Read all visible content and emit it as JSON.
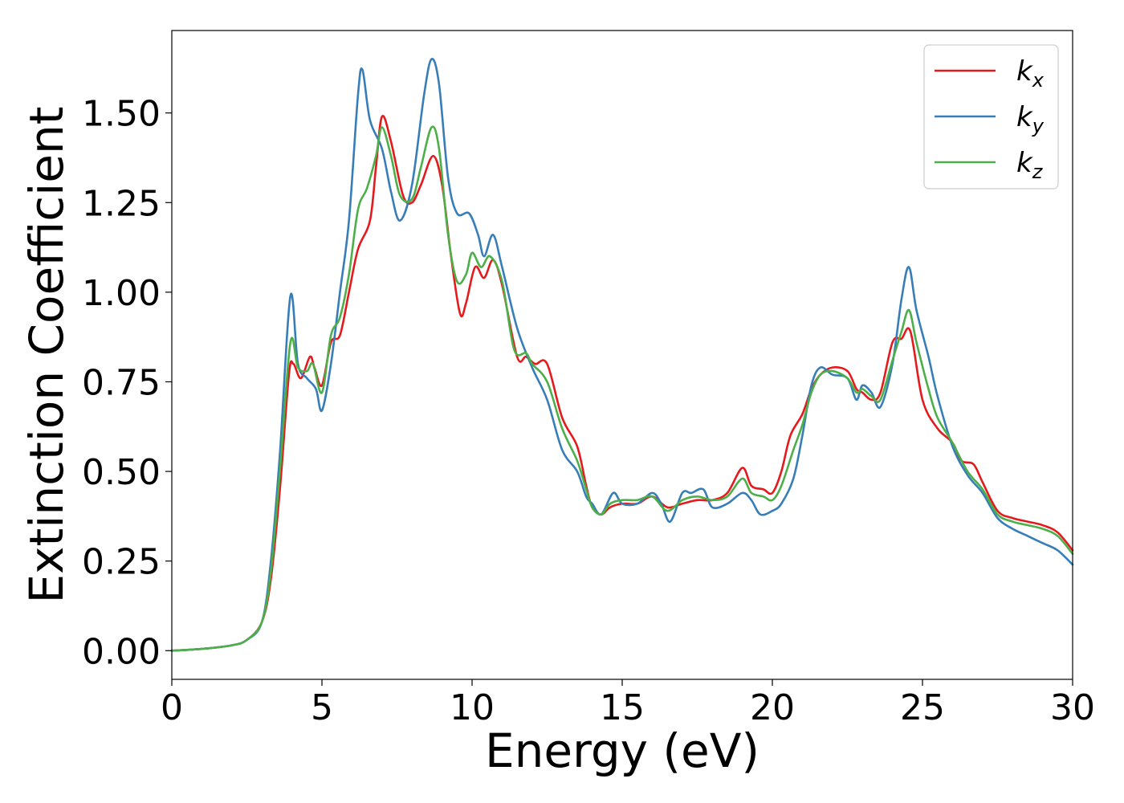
{
  "chart_data": {
    "type": "line",
    "title": "",
    "xlabel": "Energy (eV)",
    "ylabel": "Extinction Coefficient",
    "xlim": [
      0,
      30
    ],
    "ylim": [
      -0.08,
      1.73
    ],
    "xticks": [
      0,
      5,
      10,
      15,
      20,
      25,
      30
    ],
    "xtick_labels": [
      "0",
      "5",
      "10",
      "15",
      "20",
      "25",
      "30"
    ],
    "yticks": [
      0,
      0.25,
      0.5,
      0.75,
      1.0,
      1.25,
      1.5
    ],
    "ytick_labels": [
      "0.00",
      "0.25",
      "0.50",
      "0.75",
      "1.00",
      "1.25",
      "1.50"
    ],
    "grid": false,
    "legend_position": "top-right",
    "series": [
      {
        "name": "k_x",
        "legend_base": "k",
        "legend_sub": "x",
        "color": "#e41a1c",
        "points": [
          [
            0,
            0
          ],
          [
            1,
            0.005
          ],
          [
            2,
            0.015
          ],
          [
            2.5,
            0.03
          ],
          [
            3.0,
            0.08
          ],
          [
            3.3,
            0.2
          ],
          [
            3.6,
            0.45
          ],
          [
            3.9,
            0.77
          ],
          [
            4.05,
            0.8
          ],
          [
            4.3,
            0.76
          ],
          [
            4.6,
            0.82
          ],
          [
            4.75,
            0.79
          ],
          [
            5.0,
            0.74
          ],
          [
            5.3,
            0.86
          ],
          [
            5.6,
            0.88
          ],
          [
            5.9,
            1.0
          ],
          [
            6.2,
            1.12
          ],
          [
            6.6,
            1.2
          ],
          [
            6.8,
            1.35
          ],
          [
            7.0,
            1.49
          ],
          [
            7.3,
            1.42
          ],
          [
            7.7,
            1.27
          ],
          [
            8.0,
            1.25
          ],
          [
            8.3,
            1.3
          ],
          [
            8.7,
            1.38
          ],
          [
            9.0,
            1.3
          ],
          [
            9.3,
            1.1
          ],
          [
            9.6,
            0.94
          ],
          [
            9.8,
            0.97
          ],
          [
            10.1,
            1.07
          ],
          [
            10.4,
            1.04
          ],
          [
            10.7,
            1.09
          ],
          [
            11.0,
            1.02
          ],
          [
            11.5,
            0.82
          ],
          [
            11.8,
            0.82
          ],
          [
            12.1,
            0.8
          ],
          [
            12.5,
            0.8
          ],
          [
            13.0,
            0.65
          ],
          [
            13.5,
            0.57
          ],
          [
            13.8,
            0.46
          ],
          [
            14.0,
            0.4
          ],
          [
            14.3,
            0.38
          ],
          [
            14.6,
            0.4
          ],
          [
            15.0,
            0.41
          ],
          [
            15.5,
            0.41
          ],
          [
            16.0,
            0.43
          ],
          [
            16.5,
            0.4
          ],
          [
            17.0,
            0.41
          ],
          [
            17.5,
            0.42
          ],
          [
            18.0,
            0.42
          ],
          [
            18.5,
            0.44
          ],
          [
            19.0,
            0.51
          ],
          [
            19.3,
            0.46
          ],
          [
            19.7,
            0.45
          ],
          [
            20.0,
            0.44
          ],
          [
            20.3,
            0.5
          ],
          [
            20.6,
            0.6
          ],
          [
            21.0,
            0.66
          ],
          [
            21.3,
            0.73
          ],
          [
            21.6,
            0.77
          ],
          [
            22.0,
            0.79
          ],
          [
            22.5,
            0.78
          ],
          [
            22.8,
            0.73
          ],
          [
            23.0,
            0.72
          ],
          [
            23.3,
            0.7
          ],
          [
            23.6,
            0.72
          ],
          [
            24.0,
            0.86
          ],
          [
            24.3,
            0.87
          ],
          [
            24.6,
            0.89
          ],
          [
            25.0,
            0.7
          ],
          [
            25.5,
            0.62
          ],
          [
            26.0,
            0.58
          ],
          [
            26.3,
            0.53
          ],
          [
            26.7,
            0.52
          ],
          [
            27.0,
            0.47
          ],
          [
            27.5,
            0.39
          ],
          [
            28.0,
            0.37
          ],
          [
            28.5,
            0.36
          ],
          [
            29.0,
            0.35
          ],
          [
            29.5,
            0.33
          ],
          [
            30.0,
            0.28
          ]
        ]
      },
      {
        "name": "k_y",
        "legend_base": "k",
        "legend_sub": "y",
        "color": "#377eb8",
        "points": [
          [
            0,
            0
          ],
          [
            1,
            0.005
          ],
          [
            2,
            0.015
          ],
          [
            2.5,
            0.03
          ],
          [
            3.0,
            0.08
          ],
          [
            3.3,
            0.25
          ],
          [
            3.6,
            0.55
          ],
          [
            3.95,
            0.99
          ],
          [
            4.2,
            0.8
          ],
          [
            4.5,
            0.76
          ],
          [
            4.8,
            0.73
          ],
          [
            5.0,
            0.67
          ],
          [
            5.3,
            0.8
          ],
          [
            5.6,
            1.0
          ],
          [
            5.9,
            1.2
          ],
          [
            6.2,
            1.55
          ],
          [
            6.35,
            1.62
          ],
          [
            6.6,
            1.48
          ],
          [
            7.0,
            1.4
          ],
          [
            7.3,
            1.28
          ],
          [
            7.6,
            1.2
          ],
          [
            8.0,
            1.3
          ],
          [
            8.4,
            1.55
          ],
          [
            8.65,
            1.65
          ],
          [
            8.9,
            1.58
          ],
          [
            9.2,
            1.32
          ],
          [
            9.5,
            1.22
          ],
          [
            9.9,
            1.22
          ],
          [
            10.2,
            1.16
          ],
          [
            10.4,
            1.1
          ],
          [
            10.7,
            1.16
          ],
          [
            11.0,
            1.07
          ],
          [
            11.5,
            0.9
          ],
          [
            12.0,
            0.79
          ],
          [
            12.5,
            0.7
          ],
          [
            13.0,
            0.56
          ],
          [
            13.5,
            0.5
          ],
          [
            13.8,
            0.43
          ],
          [
            14.0,
            0.41
          ],
          [
            14.3,
            0.38
          ],
          [
            14.7,
            0.44
          ],
          [
            15.0,
            0.41
          ],
          [
            15.5,
            0.41
          ],
          [
            16.0,
            0.44
          ],
          [
            16.3,
            0.41
          ],
          [
            16.6,
            0.36
          ],
          [
            17.0,
            0.44
          ],
          [
            17.3,
            0.44
          ],
          [
            17.7,
            0.45
          ],
          [
            18.0,
            0.4
          ],
          [
            18.5,
            0.41
          ],
          [
            19.0,
            0.44
          ],
          [
            19.3,
            0.42
          ],
          [
            19.6,
            0.38
          ],
          [
            20.0,
            0.39
          ],
          [
            20.3,
            0.41
          ],
          [
            20.7,
            0.48
          ],
          [
            21.0,
            0.6
          ],
          [
            21.3,
            0.74
          ],
          [
            21.6,
            0.79
          ],
          [
            22.0,
            0.77
          ],
          [
            22.5,
            0.76
          ],
          [
            22.8,
            0.7
          ],
          [
            23.0,
            0.74
          ],
          [
            23.3,
            0.72
          ],
          [
            23.6,
            0.68
          ],
          [
            24.0,
            0.8
          ],
          [
            24.3,
            0.98
          ],
          [
            24.55,
            1.07
          ],
          [
            24.8,
            0.95
          ],
          [
            25.2,
            0.82
          ],
          [
            25.5,
            0.71
          ],
          [
            26.0,
            0.57
          ],
          [
            26.5,
            0.49
          ],
          [
            27.0,
            0.44
          ],
          [
            27.5,
            0.37
          ],
          [
            28.0,
            0.34
          ],
          [
            28.5,
            0.32
          ],
          [
            29.0,
            0.3
          ],
          [
            29.5,
            0.28
          ],
          [
            30.0,
            0.24
          ]
        ]
      },
      {
        "name": "k_z",
        "legend_base": "k",
        "legend_sub": "z",
        "color": "#4daf4a",
        "points": [
          [
            0,
            0
          ],
          [
            1,
            0.005
          ],
          [
            2,
            0.015
          ],
          [
            2.5,
            0.03
          ],
          [
            3.0,
            0.08
          ],
          [
            3.3,
            0.22
          ],
          [
            3.6,
            0.5
          ],
          [
            3.95,
            0.86
          ],
          [
            4.2,
            0.79
          ],
          [
            4.5,
            0.78
          ],
          [
            4.7,
            0.8
          ],
          [
            5.0,
            0.72
          ],
          [
            5.3,
            0.88
          ],
          [
            5.6,
            0.93
          ],
          [
            5.9,
            1.05
          ],
          [
            6.2,
            1.23
          ],
          [
            6.5,
            1.29
          ],
          [
            6.8,
            1.38
          ],
          [
            7.0,
            1.46
          ],
          [
            7.3,
            1.38
          ],
          [
            7.6,
            1.27
          ],
          [
            8.0,
            1.26
          ],
          [
            8.3,
            1.35
          ],
          [
            8.65,
            1.46
          ],
          [
            8.9,
            1.4
          ],
          [
            9.2,
            1.16
          ],
          [
            9.5,
            1.03
          ],
          [
            9.8,
            1.05
          ],
          [
            10.0,
            1.11
          ],
          [
            10.3,
            1.07
          ],
          [
            10.6,
            1.1
          ],
          [
            11.0,
            1.03
          ],
          [
            11.4,
            0.84
          ],
          [
            11.8,
            0.83
          ],
          [
            12.0,
            0.8
          ],
          [
            12.5,
            0.75
          ],
          [
            13.0,
            0.62
          ],
          [
            13.5,
            0.53
          ],
          [
            13.8,
            0.45
          ],
          [
            14.0,
            0.4
          ],
          [
            14.3,
            0.38
          ],
          [
            14.6,
            0.41
          ],
          [
            15.0,
            0.42
          ],
          [
            15.5,
            0.42
          ],
          [
            16.0,
            0.43
          ],
          [
            16.5,
            0.39
          ],
          [
            17.0,
            0.42
          ],
          [
            17.5,
            0.43
          ],
          [
            18.0,
            0.42
          ],
          [
            18.5,
            0.43
          ],
          [
            19.0,
            0.48
          ],
          [
            19.3,
            0.44
          ],
          [
            19.7,
            0.43
          ],
          [
            20.0,
            0.42
          ],
          [
            20.3,
            0.46
          ],
          [
            20.7,
            0.56
          ],
          [
            21.0,
            0.63
          ],
          [
            21.3,
            0.72
          ],
          [
            21.6,
            0.77
          ],
          [
            22.0,
            0.78
          ],
          [
            22.5,
            0.76
          ],
          [
            22.8,
            0.72
          ],
          [
            23.0,
            0.73
          ],
          [
            23.3,
            0.71
          ],
          [
            23.6,
            0.7
          ],
          [
            24.0,
            0.81
          ],
          [
            24.3,
            0.89
          ],
          [
            24.55,
            0.95
          ],
          [
            24.8,
            0.86
          ],
          [
            25.2,
            0.73
          ],
          [
            25.5,
            0.65
          ],
          [
            26.0,
            0.58
          ],
          [
            26.5,
            0.5
          ],
          [
            27.0,
            0.45
          ],
          [
            27.5,
            0.38
          ],
          [
            28.0,
            0.36
          ],
          [
            28.5,
            0.35
          ],
          [
            29.0,
            0.34
          ],
          [
            29.5,
            0.32
          ],
          [
            30.0,
            0.27
          ]
        ]
      }
    ]
  }
}
